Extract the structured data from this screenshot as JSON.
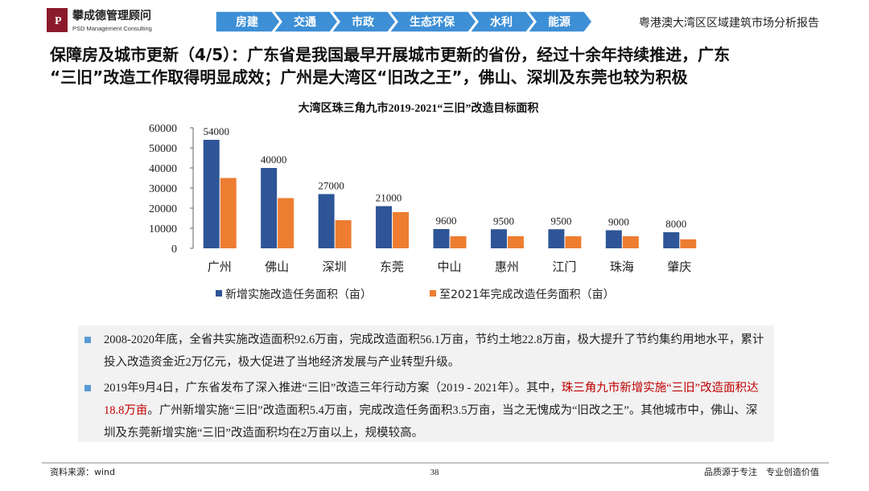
{
  "header": {
    "company": "攀成德管理顾问",
    "company_en": "PSD Management Consulting",
    "tabs": [
      "房建",
      "交通",
      "市政",
      "生态环保",
      "水利",
      "能源"
    ],
    "report_title": "粤港澳大湾区区域建筑市场分析报告"
  },
  "title_lines": [
    "保障房及城市更新（4/5）：广东省是我国最早开展城市更新的省份，经过十余年持续推进，广东",
    "“三旧”改造工作取得明显成效；广州是大湾区“旧改之王”，佛山、深圳及东莞也较为积极"
  ],
  "chart_data": {
    "type": "bar",
    "title": "大湾区珠三角九市2019-2021“三旧”改造目标面积",
    "categories": [
      "广州",
      "佛山",
      "深圳",
      "东莞",
      "中山",
      "惠州",
      "江门",
      "珠海",
      "肇庆"
    ],
    "series": [
      {
        "name": "新增实施改造任务面积（亩）",
        "color": "#2e5597",
        "values": [
          54000,
          40000,
          27000,
          21000,
          9600,
          9500,
          9500,
          9000,
          8000
        ]
      },
      {
        "name": "至2021年完成改造任务面积（亩）",
        "color": "#ed7d31",
        "values": [
          35000,
          25000,
          14000,
          18000,
          6000,
          6000,
          6000,
          6000,
          4500
        ]
      }
    ],
    "ylim": [
      0,
      60000
    ],
    "yticks": [
      0,
      10000,
      20000,
      30000,
      40000,
      50000,
      60000
    ]
  },
  "bullets": [
    {
      "segments": [
        {
          "text": "2008-2020年底，全省共实施改造面积92.6万亩，完成改造面积56.1万亩，节约土地22.8万亩，极大提升了节约集约用地水平，累计投入改造资金近2万亿元，极大促进了当地经济发展与产业转型升级。"
        }
      ]
    },
    {
      "segments": [
        {
          "text": "2019年9月4日，广东省发布了深入推进“三旧”改造三年行动方案（2019 - 2021年）。其中，"
        },
        {
          "text": "珠三角九市新增实施“三旧”改造面积达18.8万亩",
          "color": "#c00000"
        },
        {
          "text": "。广州新增实施“三旧”改造面积5.4万亩，完成改造任务面积3.5万亩，当之无愧成为“旧改之王”。其他城市中，佛山、深圳及东莞新增实施“三旧”改造面积均在2万亩以上，规模较高。"
        }
      ]
    }
  ],
  "footer": {
    "source": "资料来源：wind",
    "page": "38",
    "slogan": "品质源于专注　专业创造价值"
  }
}
